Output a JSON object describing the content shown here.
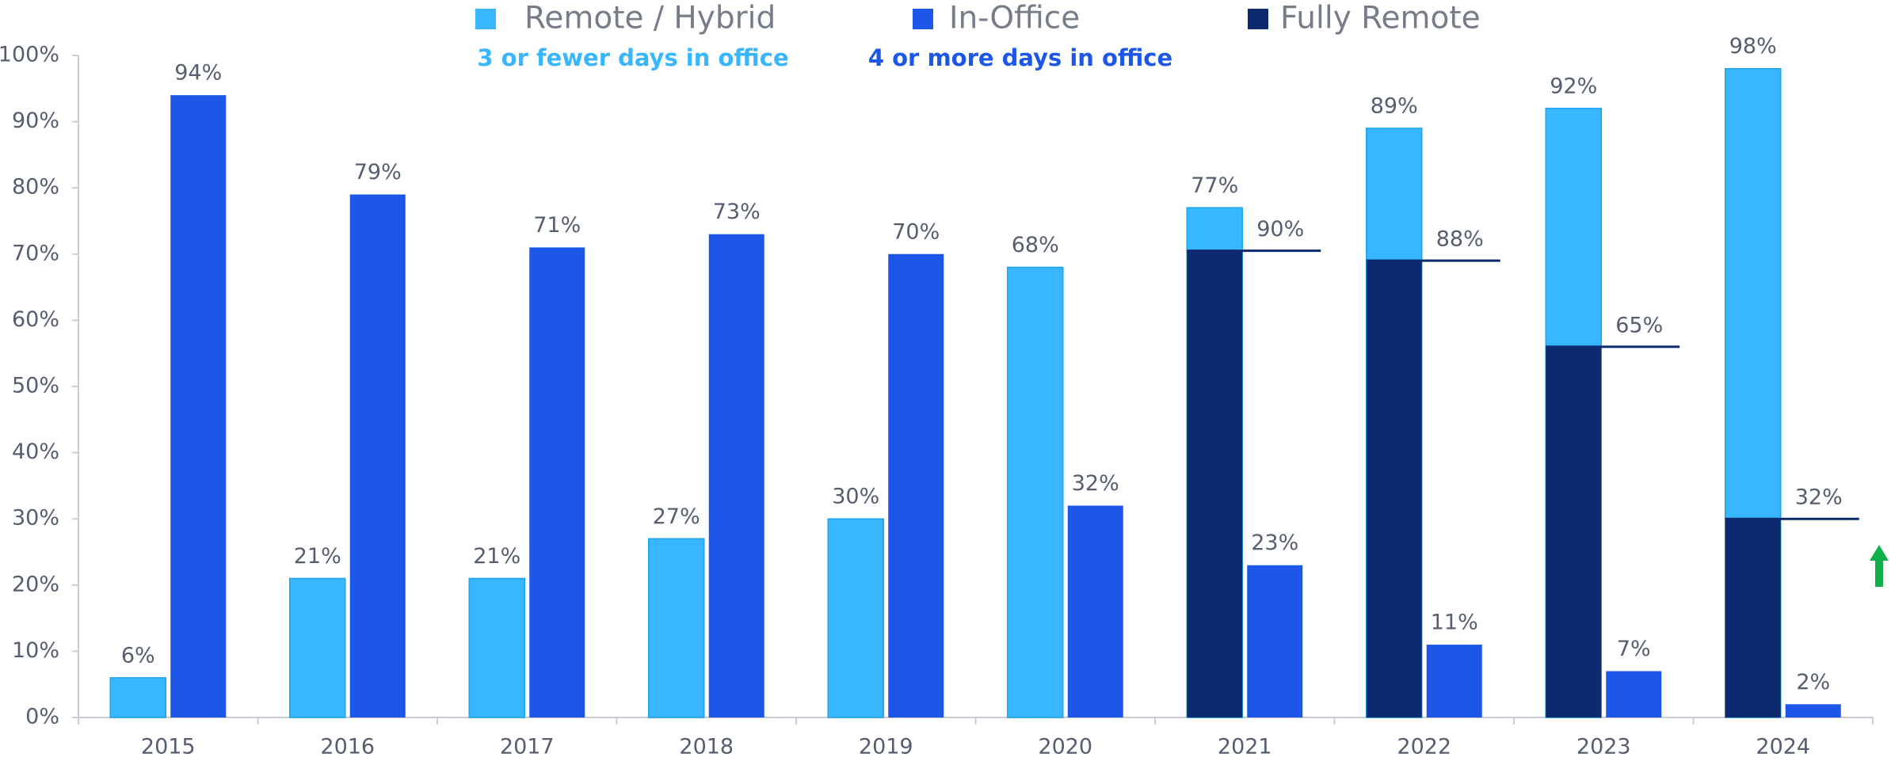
{
  "chart_data": {
    "type": "bar",
    "categories": [
      "2015",
      "2016",
      "2017",
      "2018",
      "2019",
      "2020",
      "2021",
      "2022",
      "2023",
      "2024"
    ],
    "series": [
      {
        "name": "Remote / Hybrid",
        "description": "3 or fewer days in office",
        "color": "#38b6ff",
        "values": [
          6,
          21,
          21,
          27,
          30,
          68,
          77,
          89,
          92,
          98
        ],
        "value_labels": [
          "6%",
          "21%",
          "21%",
          "27%",
          "30%",
          "68%",
          "77%",
          "89%",
          "92%",
          "98%"
        ]
      },
      {
        "name": "In-Office",
        "description": "4 or more days in office",
        "color": "#1c57e8",
        "values": [
          94,
          79,
          71,
          73,
          70,
          32,
          23,
          11,
          7,
          2
        ],
        "value_labels": [
          "94%",
          "79%",
          "71%",
          "73%",
          "70%",
          "32%",
          "23%",
          "11%",
          "7%",
          "2%"
        ]
      },
      {
        "name": "Fully Remote",
        "color": "#0c2a6e",
        "values": [
          null,
          null,
          null,
          null,
          null,
          null,
          70.5,
          69,
          56,
          30
        ],
        "annotations": [
          null,
          null,
          null,
          null,
          null,
          null,
          "90%",
          "88%",
          "65%",
          "32%"
        ]
      }
    ],
    "ylim": [
      0,
      100
    ],
    "yticks": [
      {
        "value": 0,
        "label": "0%"
      },
      {
        "value": 10,
        "label": "10%"
      },
      {
        "value": 20,
        "label": "20%"
      },
      {
        "value": 30,
        "label": "30%"
      },
      {
        "value": 40,
        "label": "40%"
      },
      {
        "value": 50,
        "label": "50%"
      },
      {
        "value": 60,
        "label": "60%"
      },
      {
        "value": 70,
        "label": "70%"
      },
      {
        "value": 80,
        "label": "80%"
      },
      {
        "value": 90,
        "label": "90%"
      },
      {
        "value": 100,
        "label": "100%"
      }
    ],
    "grid": false
  }
}
